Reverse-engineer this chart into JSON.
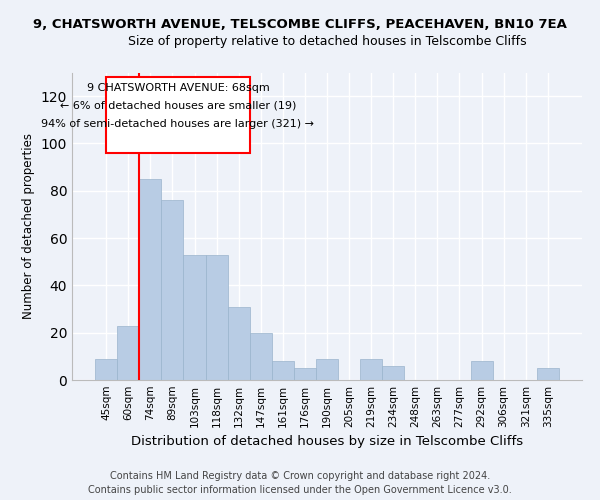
{
  "title1": "9, CHATSWORTH AVENUE, TELSCOMBE CLIFFS, PEACEHAVEN, BN10 7EA",
  "title2": "Size of property relative to detached houses in Telscombe Cliffs",
  "xlabel": "Distribution of detached houses by size in Telscombe Cliffs",
  "ylabel": "Number of detached properties",
  "categories": [
    "45sqm",
    "60sqm",
    "74sqm",
    "89sqm",
    "103sqm",
    "118sqm",
    "132sqm",
    "147sqm",
    "161sqm",
    "176sqm",
    "190sqm",
    "205sqm",
    "219sqm",
    "234sqm",
    "248sqm",
    "263sqm",
    "277sqm",
    "292sqm",
    "306sqm",
    "321sqm",
    "335sqm"
  ],
  "values": [
    9,
    23,
    85,
    76,
    53,
    53,
    31,
    20,
    8,
    5,
    9,
    0,
    9,
    6,
    0,
    0,
    0,
    8,
    0,
    0,
    5
  ],
  "bar_color": "#b8cce4",
  "bar_edge_color": "#9ab4cc",
  "property_line_label": "9 CHATSWORTH AVENUE: 68sqm",
  "annotation_line1": "← 6% of detached houses are smaller (19)",
  "annotation_line2": "94% of semi-detached houses are larger (321) →",
  "ylim": [
    0,
    130
  ],
  "yticks": [
    0,
    20,
    40,
    60,
    80,
    100,
    120
  ],
  "footer1": "Contains HM Land Registry data © Crown copyright and database right 2024.",
  "footer2": "Contains public sector information licensed under the Open Government Licence v3.0.",
  "bg_color": "#eef2f9",
  "grid_color": "#ffffff",
  "title1_fontsize": 9.5,
  "title2_fontsize": 9,
  "xlabel_fontsize": 9.5,
  "ylabel_fontsize": 8.5,
  "footer_fontsize": 7,
  "tick_fontsize": 7.5,
  "annot_fontsize": 8
}
